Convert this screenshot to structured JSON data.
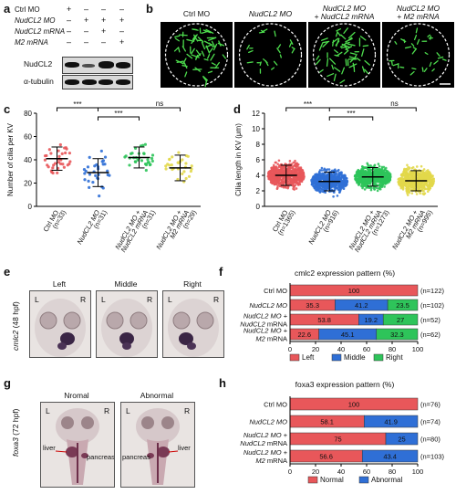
{
  "panels": {
    "a": {
      "label": "a",
      "rows": [
        {
          "name": "Ctrl MO",
          "marks": [
            "+",
            "–",
            "–",
            "–"
          ]
        },
        {
          "name": "NudCL2 MO",
          "marks": [
            "–",
            "+",
            "+",
            "+"
          ]
        },
        {
          "name": "NudCL2 mRNA",
          "marks": [
            "–",
            "–",
            "+",
            "–"
          ]
        },
        {
          "name": "M2 mRNA",
          "marks": [
            "–",
            "–",
            "–",
            "+"
          ]
        }
      ],
      "blot_labels": [
        "NudCL2",
        "α-tubulin"
      ]
    },
    "b": {
      "label": "b",
      "headers": [
        "Ctrl MO",
        "NudCL2 MO",
        "NudCL2 MO\n+ NudCL2 mRNA",
        "NudCL2 MO\n+ M2 mRNA"
      ]
    },
    "c": {
      "label": "c",
      "ylabel": "Number of cilia per KV",
      "yticks": [
        "0",
        "20",
        "40",
        "60",
        "80"
      ],
      "sig": [
        "***",
        "***",
        "ns"
      ],
      "groups": [
        "Ctrl MO\n(n=33)",
        "NudCL2 MO\n(n=31)",
        "NudCL2 MO +\nNudCL2 mRNA\n(n=31)",
        "NudCL2 MO +\nM2 mRNA\n(n=29)"
      ]
    },
    "d": {
      "label": "d",
      "ylabel": "Cilia length in KV (μm)",
      "yticks": [
        "0",
        "2",
        "4",
        "6",
        "8",
        "10",
        "12"
      ],
      "sig": [
        "***",
        "***",
        "ns"
      ],
      "groups": [
        "Ctrl MO\n(n=1365)",
        "NudCL2 MO\n(n=916)",
        "NudCL2 MO +\nNudCL2 mRNA\n(n=1273)",
        "NudCL2 MO +\nM2 mRNA\n(n=995)"
      ]
    },
    "e": {
      "label": "e",
      "side_label": "cmlc2 (48 hpf)",
      "headers": [
        "Left",
        "Middle",
        "Right"
      ],
      "lr": [
        "L",
        "R"
      ]
    },
    "f": {
      "label": "f",
      "title": "cmlc2 expression pattern (%)",
      "rows": [
        {
          "name": "Ctrl MO",
          "n": "(n=122)"
        },
        {
          "name": "NudCL2 MO",
          "n": "(n=102)"
        },
        {
          "name": "NudCL2 MO +\nNudCL2 mRNA",
          "n": "(n=52)"
        },
        {
          "name": "NudCL2 MO +\nM2 mRNA",
          "n": "(n=62)"
        }
      ],
      "xticks": [
        "0",
        "20",
        "40",
        "60",
        "80",
        "100"
      ],
      "legend": [
        "Left",
        "Middle",
        "Right"
      ]
    },
    "g": {
      "label": "g",
      "side_label": "foxa3 (72 hpf)",
      "headers": [
        "Nromal",
        "Abnormal"
      ],
      "lr": [
        "L",
        "R"
      ],
      "annot": [
        "liver",
        "pancreas",
        "pancreas",
        "liver"
      ]
    },
    "h": {
      "label": "h",
      "title": "foxa3 expression pattern (%)",
      "rows": [
        {
          "name": "Ctrl MO",
          "n": "(n=76)"
        },
        {
          "name": "NudCL2 MO",
          "n": "(n=74)"
        },
        {
          "name": "NudCL2 MO +\nNudCL2 mRNA",
          "n": "(n=80)"
        },
        {
          "name": "NudCL2 MO +\nM2 mRNA",
          "n": "(n=103)"
        }
      ],
      "xticks": [
        "0",
        "20",
        "40",
        "60",
        "80",
        "100"
      ],
      "legend": [
        "Normal",
        "Abnormal"
      ]
    }
  },
  "colors": {
    "red": "#e8575a",
    "blue": "#2f6fd6",
    "green": "#2ec45a",
    "yellow": "#e2d84a"
  },
  "chart_data": [
    {
      "type": "scatter",
      "panel": "c",
      "ylabel": "Number of cilia per KV",
      "ylim": [
        0,
        80
      ],
      "categories": [
        "Ctrl MO (n=33)",
        "NudCL2 MO (n=31)",
        "NudCL2 MO + NudCL2 mRNA (n=31)",
        "NudCL2 MO + M2 mRNA (n=29)"
      ],
      "mean": [
        41,
        29,
        42,
        33
      ],
      "sd": [
        10,
        12,
        9,
        11
      ],
      "n": [
        33,
        31,
        31,
        29
      ]
    },
    {
      "type": "scatter",
      "panel": "d",
      "ylabel": "Cilia length in KV (μm)",
      "ylim": [
        0,
        12
      ],
      "categories": [
        "Ctrl MO (n=1365)",
        "NudCL2 MO (n=916)",
        "NudCL2 MO + NudCL2 mRNA (n=1273)",
        "NudCL2 MO + M2 mRNA (n=995)"
      ],
      "mean": [
        4.0,
        3.2,
        3.8,
        3.3
      ],
      "sd": [
        1.3,
        1.2,
        1.2,
        1.3
      ],
      "n": [
        1365,
        916,
        1273,
        995
      ]
    },
    {
      "type": "bar",
      "panel": "f",
      "title": "cmlc2 expression pattern (%)",
      "categories": [
        "Ctrl MO",
        "NudCL2 MO",
        "NudCL2 MO + NudCL2 mRNA",
        "NudCL2 MO + M2 mRNA"
      ],
      "series": [
        {
          "name": "Left",
          "values": [
            100,
            35.3,
            53.8,
            22.6
          ]
        },
        {
          "name": "Middle",
          "values": [
            0,
            41.2,
            19.2,
            45.1
          ]
        },
        {
          "name": "Right",
          "values": [
            0,
            23.5,
            27,
            32.3
          ]
        }
      ],
      "xlim": [
        0,
        100
      ]
    },
    {
      "type": "bar",
      "panel": "h",
      "title": "foxa3 expression pattern (%)",
      "categories": [
        "Ctrl MO",
        "NudCL2 MO",
        "NudCL2 MO + NudCL2 mRNA",
        "NudCL2 MO + M2 mRNA"
      ],
      "series": [
        {
          "name": "Normal",
          "values": [
            100,
            58.1,
            75,
            56.6
          ]
        },
        {
          "name": "Abnormal",
          "values": [
            0,
            41.9,
            25,
            43.4
          ]
        }
      ],
      "xlim": [
        0,
        100
      ]
    }
  ]
}
